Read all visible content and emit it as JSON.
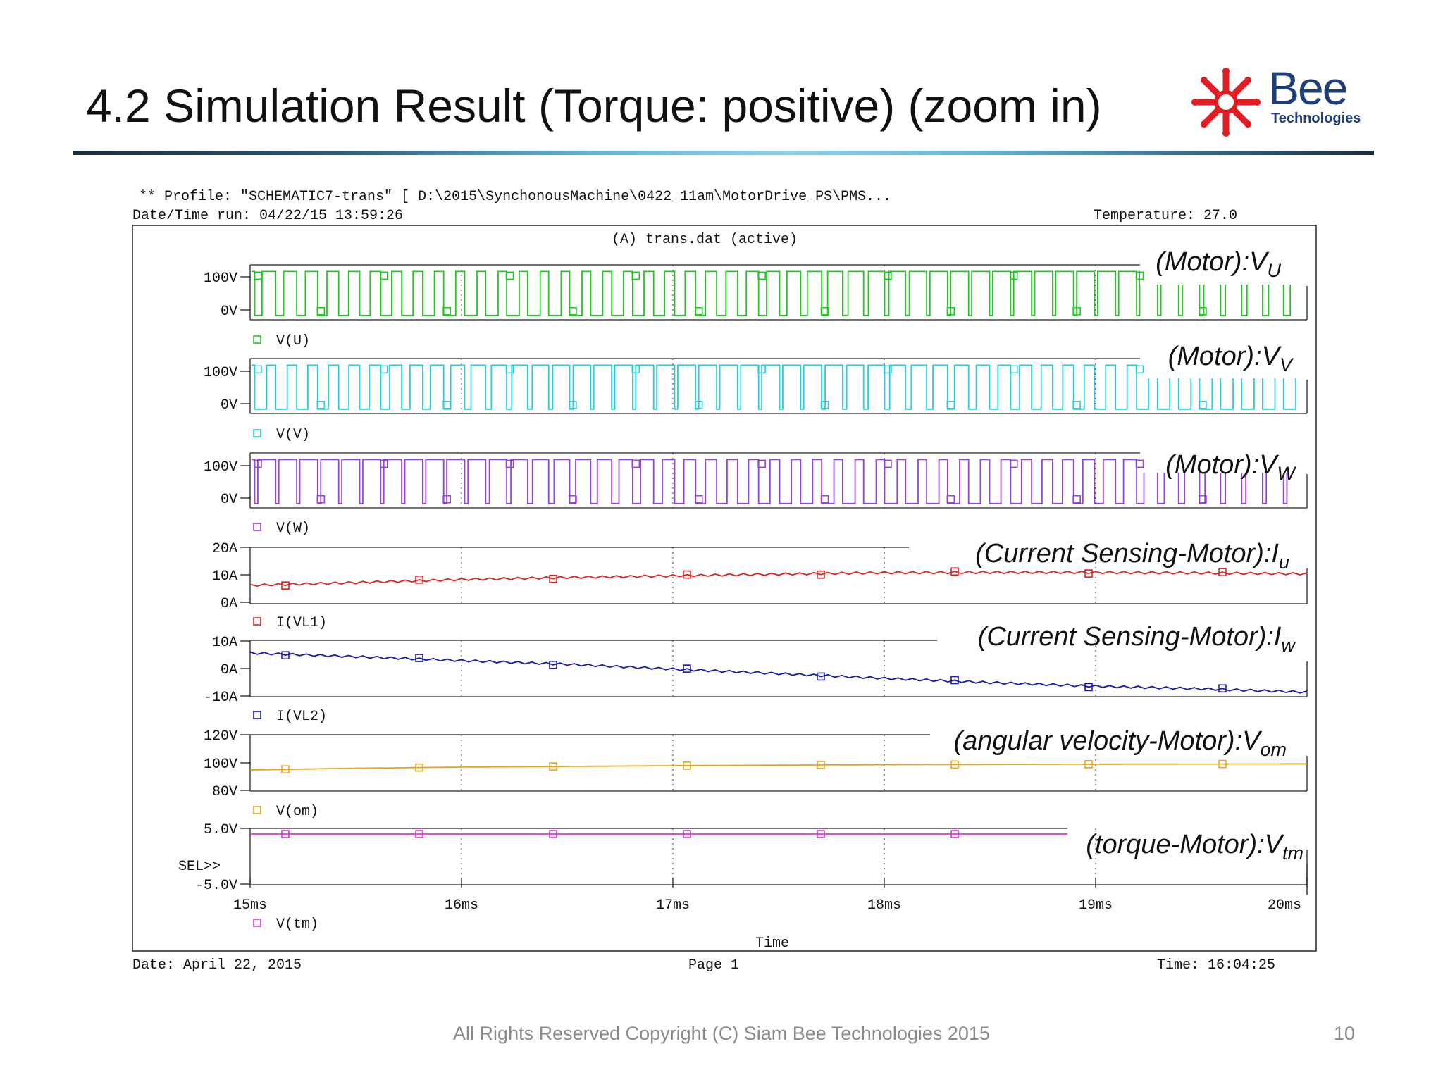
{
  "slide": {
    "title": "4.2 Simulation Result (Torque: positive) (zoom in)",
    "logo_word": "Bee",
    "logo_sub": "Technologies",
    "copyright": "All Rights Reserved Copyright (C) Siam Bee Technologies 2015",
    "page_number": "10"
  },
  "colors": {
    "green": "#22c822",
    "cyan": "#22cfe0",
    "purple": "#9a3fe0",
    "red": "#dd2222",
    "blue": "#1a1aaa",
    "orange": "#e8a318",
    "magenta": "#dd33dd",
    "logo_red": "#e31b23",
    "logo_blue": "#1e3f7c"
  },
  "chart_data": {
    "type": "line",
    "header": {
      "profile": "** Profile: \"SCHEMATIC7-trans\"  [ D:\\2015\\SynchonousMachine\\0422_11am\\MotorDrive_PS\\PMS...",
      "datetime": "Date/Time run: 04/22/15 13:59:26",
      "temperature": "Temperature: 27.0",
      "dataset": "(A) trans.dat (active)"
    },
    "footer": {
      "date": "Date: April 22, 2015",
      "page": "Page 1",
      "time": "Time: 16:04:25"
    },
    "x_axis": {
      "label": "Time",
      "range_ms": [
        15,
        20
      ],
      "ticks": [
        15,
        16,
        17,
        18,
        19,
        20
      ],
      "tick_labels": [
        "15ms",
        "16ms",
        "17ms",
        "18ms",
        "19ms",
        "20ms"
      ]
    },
    "sel_marker": "SEL>>",
    "panels": [
      {
        "id": "vu",
        "trace": "V(U)",
        "color": "green",
        "kind": "pwm",
        "ticks": [
          "100V",
          "0V"
        ],
        "ylim": [
          -10,
          115
        ],
        "pulses": 50,
        "low": 0,
        "high": 100,
        "annotation": {
          "base": "(Motor):V",
          "sub": "U"
        }
      },
      {
        "id": "vv",
        "trace": "V(V)",
        "color": "cyan",
        "kind": "pwm",
        "ticks": [
          "100V",
          "0V"
        ],
        "ylim": [
          -10,
          115
        ],
        "pulses": 50,
        "low": 0,
        "high": 100,
        "annotation": {
          "base": "(Motor):V",
          "sub": "V"
        }
      },
      {
        "id": "vw",
        "trace": "V(W)",
        "color": "purple",
        "kind": "pwm",
        "ticks": [
          "100V",
          "0V"
        ],
        "ylim": [
          -10,
          115
        ],
        "pulses": 50,
        "low": 0,
        "high": 100,
        "annotation": {
          "base": "(Motor):V",
          "sub": "W"
        }
      },
      {
        "id": "iu",
        "trace": "I(VL1)",
        "color": "red",
        "kind": "line",
        "ticks": [
          "20A",
          "10A",
          "0A"
        ],
        "ylim": [
          0,
          20
        ],
        "x": [
          15,
          15.5,
          16,
          16.5,
          17,
          17.5,
          18,
          18.5,
          19,
          19.5,
          20
        ],
        "y": [
          6.5,
          7.5,
          8.6,
          9.3,
          9.9,
          10.5,
          11.0,
          11.1,
          11.1,
          10.9,
          10.6
        ],
        "annotation": {
          "base": "(Current Sensing-Motor):I",
          "sub": "u"
        }
      },
      {
        "id": "iw",
        "trace": "I(VL2)",
        "color": "blue",
        "kind": "line",
        "ticks": [
          "10A",
          "0A",
          "-10A"
        ],
        "ylim": [
          -10,
          10
        ],
        "x": [
          15,
          15.5,
          16,
          16.5,
          17,
          17.5,
          18,
          18.5,
          19,
          19.5,
          20
        ],
        "y": [
          5.5,
          4.2,
          2.8,
          1.5,
          -0.2,
          -1.8,
          -3.5,
          -5.0,
          -6.3,
          -7.2,
          -8.4
        ],
        "annotation": {
          "base": "(Current Sensing-Motor):I",
          "sub": "w"
        }
      },
      {
        "id": "om",
        "trace": "V(om)",
        "color": "orange",
        "kind": "line",
        "ticks": [
          "120V",
          "100V",
          "80V"
        ],
        "ylim": [
          80,
          120
        ],
        "x": [
          15,
          15.5,
          16,
          16.5,
          17,
          17.5,
          18,
          18.5,
          19,
          19.5,
          20
        ],
        "y": [
          95.0,
          96.2,
          97.0,
          97.5,
          98.0,
          98.4,
          98.7,
          98.9,
          99.1,
          99.2,
          99.3
        ],
        "annotation": {
          "base": "(angular velocity-Motor):V",
          "sub": "om"
        }
      },
      {
        "id": "tm",
        "trace": "V(tm)",
        "color": "magenta",
        "kind": "line",
        "ticks": [
          "5.0V",
          "-5.0V"
        ],
        "ylim": [
          -5,
          5
        ],
        "x": [
          15,
          20
        ],
        "y": [
          5.0,
          5.0
        ],
        "annotation": {
          "base": "(torque-Motor):V",
          "sub": "tm"
        }
      }
    ]
  }
}
